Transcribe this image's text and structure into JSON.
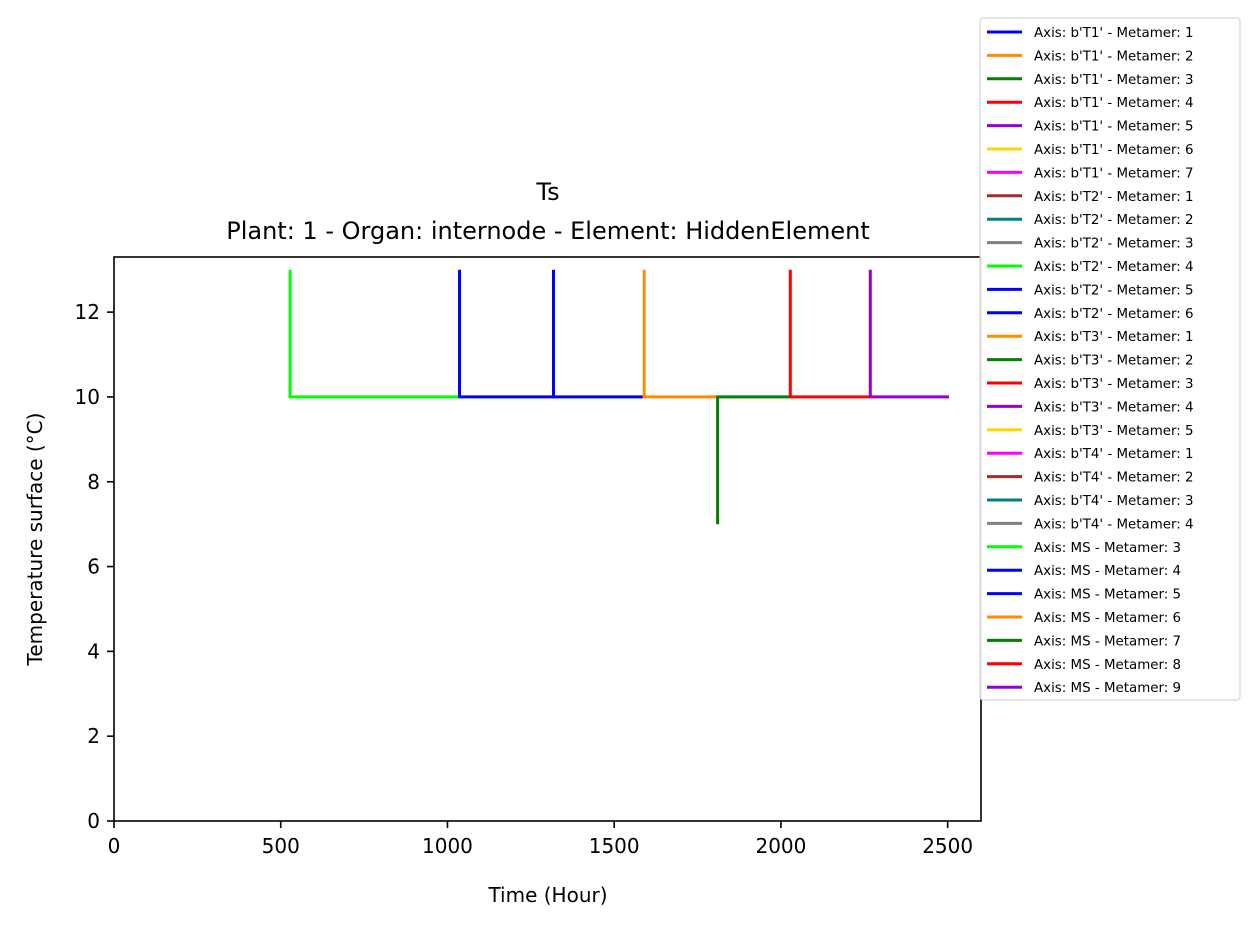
{
  "chart_data": {
    "type": "line",
    "title": "Ts",
    "subtitle": "Plant: 1 - Organ: internode - Element: HiddenElement",
    "xlabel": "Time (Hour)",
    "ylabel": "Temperature surface (°C)",
    "xlim": [
      0,
      2600
    ],
    "ylim": [
      0,
      13.3
    ],
    "xticks": [
      0,
      500,
      1000,
      1500,
      2000,
      2500
    ],
    "yticks": [
      0,
      2,
      4,
      6,
      8,
      10,
      12
    ],
    "grid": false,
    "legend_position": "outside-right",
    "series": [
      {
        "name": "Axis: b'T1' - Metamer: 1",
        "color": "#0000ff",
        "points": []
      },
      {
        "name": "Axis: b'T1' - Metamer: 2",
        "color": "#ff8c00",
        "points": []
      },
      {
        "name": "Axis: b'T1' - Metamer: 3",
        "color": "#008000",
        "points": []
      },
      {
        "name": "Axis: b'T1' - Metamer: 4",
        "color": "#ff0000",
        "points": []
      },
      {
        "name": "Axis: b'T1' - Metamer: 5",
        "color": "#9400d3",
        "points": []
      },
      {
        "name": "Axis: b'T1' - Metamer: 6",
        "color": "#ffd700",
        "points": []
      },
      {
        "name": "Axis: b'T1' - Metamer: 7",
        "color": "#ff00ff",
        "points": []
      },
      {
        "name": "Axis: b'T2' - Metamer: 1",
        "color": "#a52a2a",
        "points": []
      },
      {
        "name": "Axis: b'T2' - Metamer: 2",
        "color": "#008080",
        "points": []
      },
      {
        "name": "Axis: b'T2' - Metamer: 3",
        "color": "#808080",
        "points": []
      },
      {
        "name": "Axis: b'T2' - Metamer: 4",
        "color": "#00ff00",
        "points": []
      },
      {
        "name": "Axis: b'T2' - Metamer: 5",
        "color": "#0000ff",
        "points": []
      },
      {
        "name": "Axis: b'T2' - Metamer: 6",
        "color": "#0000ff",
        "points": []
      },
      {
        "name": "Axis: b'T3' - Metamer: 1",
        "color": "#ff8c00",
        "points": []
      },
      {
        "name": "Axis: b'T3' - Metamer: 2",
        "color": "#008000",
        "points": []
      },
      {
        "name": "Axis: b'T3' - Metamer: 3",
        "color": "#ff0000",
        "points": []
      },
      {
        "name": "Axis: b'T3' - Metamer: 4",
        "color": "#9400d3",
        "points": []
      },
      {
        "name": "Axis: b'T3' - Metamer: 5",
        "color": "#ffd700",
        "points": []
      },
      {
        "name": "Axis: b'T4' - Metamer: 1",
        "color": "#ff00ff",
        "points": []
      },
      {
        "name": "Axis: b'T4' - Metamer: 2",
        "color": "#a52a2a",
        "points": []
      },
      {
        "name": "Axis: b'T4' - Metamer: 3",
        "color": "#008080",
        "points": []
      },
      {
        "name": "Axis: b'T4' - Metamer: 4",
        "color": "#808080",
        "points": []
      },
      {
        "name": "Axis: MS - Metamer: 3",
        "color": "#00ff00",
        "points": [
          [
            528,
            13
          ],
          [
            528,
            10
          ],
          [
            1032,
            10
          ]
        ]
      },
      {
        "name": "Axis: MS - Metamer: 4",
        "color": "#0000ff",
        "points": [
          [
            1036,
            13
          ],
          [
            1036,
            10
          ],
          [
            1318,
            10
          ]
        ]
      },
      {
        "name": "Axis: MS - Metamer: 5",
        "color": "#0000ff",
        "points": [
          [
            1318,
            13
          ],
          [
            1318,
            10
          ],
          [
            1590,
            10
          ]
        ]
      },
      {
        "name": "Axis: MS - Metamer: 6",
        "color": "#ff8c00",
        "points": [
          [
            1590,
            13
          ],
          [
            1590,
            10
          ],
          [
            1810,
            10
          ]
        ]
      },
      {
        "name": "Axis: MS - Metamer: 7",
        "color": "#008000",
        "points": [
          [
            1810,
            7
          ],
          [
            1810,
            10
          ],
          [
            2028,
            10
          ]
        ]
      },
      {
        "name": "Axis: MS - Metamer: 8",
        "color": "#ff0000",
        "points": [
          [
            2028,
            13
          ],
          [
            2028,
            10
          ],
          [
            2268,
            10
          ]
        ]
      },
      {
        "name": "Axis: MS - Metamer: 9",
        "color": "#9400d3",
        "points": [
          [
            2268,
            13
          ],
          [
            2268,
            10
          ],
          [
            2504,
            10
          ]
        ]
      }
    ]
  }
}
